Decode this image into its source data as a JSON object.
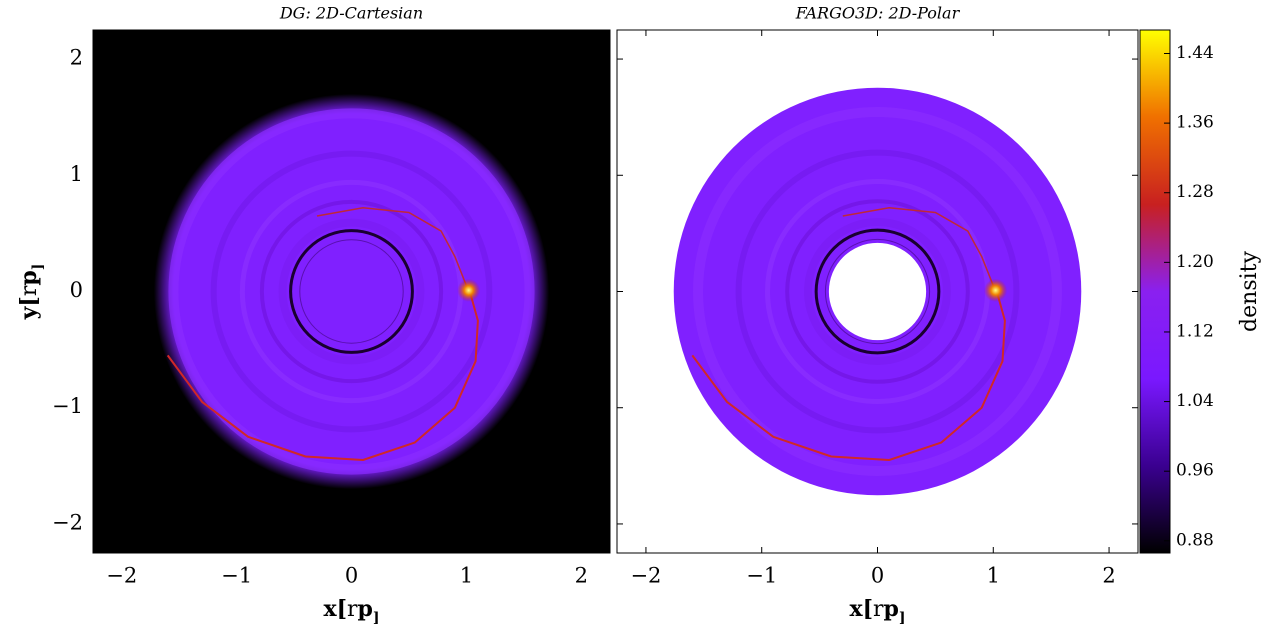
{
  "chart_data": [
    {
      "type": "heatmap",
      "title": "DG: 2D-Cartesian",
      "background": "#000000",
      "inner_hole": false,
      "xlabel": [
        "x[",
        "r",
        "p",
        "]"
      ],
      "ylabel": [
        "y[",
        "r",
        "p",
        "]"
      ],
      "xlim": [
        -2.25,
        2.25
      ],
      "ylim": [
        -2.25,
        2.25
      ],
      "xticks": [
        {
          "value": -2,
          "label": "−2"
        },
        {
          "value": -1,
          "label": "−1"
        },
        0,
        1,
        2
      ],
      "yticks": [
        {
          "value": -2,
          "label": "−2"
        },
        {
          "value": -1,
          "label": "−1"
        },
        0,
        1,
        2
      ]
    },
    {
      "type": "heatmap",
      "title": "FARGO3D: 2D-Polar",
      "background": "#ffffff",
      "inner_hole": true,
      "xlabel": [
        "x[",
        "r",
        "p",
        "]"
      ],
      "xlim": [
        -2.25,
        2.25
      ],
      "ylim": [
        -2.25,
        2.25
      ],
      "xticks": [
        {
          "value": -2,
          "label": "−2"
        },
        {
          "value": -1,
          "label": "−1"
        },
        0,
        1,
        2
      ],
      "yticks": [
        -2,
        -1,
        0,
        1,
        2
      ],
      "colorbar": {
        "label": "density",
        "clim": [
          0.866,
          1.467
        ],
        "colormap": [
          "#000000",
          "#3a0090",
          "#7a18ff",
          "#8a20f0",
          "#c82020",
          "#f07000",
          "#ffff00"
        ],
        "ticks": [
          0.88,
          0.96,
          1.04,
          1.12,
          {
            "value": 1.2,
            "label": "1.20"
          },
          1.28,
          1.36,
          1.44
        ]
      }
    }
  ]
}
